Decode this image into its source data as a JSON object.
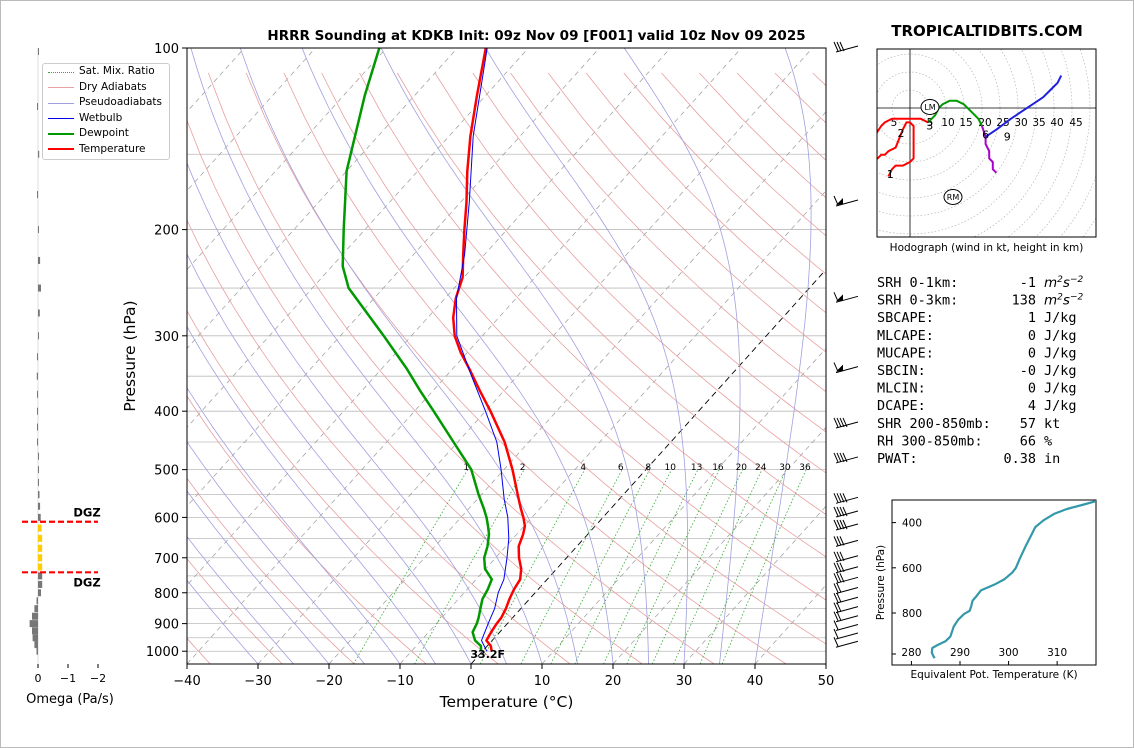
{
  "title": "HRRR Sounding at KDKB Init: 09z Nov 09 [F001] valid 10z Nov 09 2025",
  "watermark": "TROPICALTIDBITS.COM",
  "chart_data": [
    {
      "type": "line",
      "subtype": "skew-t-log-p",
      "xlabel": "Temperature (°C)",
      "ylabel": "Pressure (hPa)",
      "xlim": [
        -40,
        50
      ],
      "ylim": [
        1050,
        100
      ],
      "log_y": true,
      "x_ticks": [
        "−40",
        "−30",
        "−20",
        "−10",
        "0",
        "10",
        "20",
        "30",
        "40",
        "50"
      ],
      "y_ticks": [
        "100",
        "200",
        "300",
        "400",
        "500",
        "600",
        "700",
        "800",
        "900",
        "1000"
      ],
      "legend": {
        "position": "top-left",
        "entries": [
          "Sat. Mix. Ratio",
          "Dry Adiabats",
          "Pseudoadiabats",
          "Wetbulb",
          "Dewpoint",
          "Temperature"
        ]
      },
      "surface_label": "33.2F",
      "mixing_ratio_labels": [
        "1",
        "2",
        "4",
        "6",
        "8",
        "10",
        "13",
        "16",
        "20",
        "24",
        "30",
        "36"
      ],
      "series": [
        {
          "name": "Temperature",
          "color": "#ff0000",
          "points": [
            [
              1000,
              1.3
            ],
            [
              980,
              0.5
            ],
            [
              960,
              -0.8
            ],
            [
              930,
              -1.2
            ],
            [
              900,
              -1.5
            ],
            [
              880,
              -1.6
            ],
            [
              850,
              -2.1
            ],
            [
              820,
              -2.8
            ],
            [
              790,
              -3.4
            ],
            [
              760,
              -3.8
            ],
            [
              730,
              -5.0
            ],
            [
              700,
              -6.7
            ],
            [
              670,
              -8.2
            ],
            [
              640,
              -9.1
            ],
            [
              620,
              -9.9
            ],
            [
              600,
              -11.2
            ],
            [
              580,
              -12.7
            ],
            [
              550,
              -14.9
            ],
            [
              500,
              -18.8
            ],
            [
              450,
              -23.4
            ],
            [
              400,
              -29.3
            ],
            [
              370,
              -33.4
            ],
            [
              340,
              -37.7
            ],
            [
              320,
              -40.9
            ],
            [
              300,
              -43.9
            ],
            [
              280,
              -46.4
            ],
            [
              260,
              -48.5
            ],
            [
              240,
              -50.2
            ],
            [
              220,
              -53.0
            ],
            [
              200,
              -56.0
            ],
            [
              180,
              -59.2
            ],
            [
              160,
              -63.0
            ],
            [
              140,
              -67.0
            ],
            [
              120,
              -71.2
            ],
            [
              100,
              -76.0
            ]
          ]
        },
        {
          "name": "Dewpoint",
          "color": "#009900",
          "points": [
            [
              1000,
              -0.2
            ],
            [
              980,
              -0.9
            ],
            [
              960,
              -2.4
            ],
            [
              930,
              -3.8
            ],
            [
              900,
              -4.3
            ],
            [
              880,
              -4.8
            ],
            [
              850,
              -5.7
            ],
            [
              820,
              -6.6
            ],
            [
              790,
              -7.1
            ],
            [
              760,
              -7.8
            ],
            [
              730,
              -10.1
            ],
            [
              700,
              -11.6
            ],
            [
              670,
              -12.6
            ],
            [
              640,
              -13.9
            ],
            [
              620,
              -15.1
            ],
            [
              600,
              -16.4
            ],
            [
              580,
              -17.9
            ],
            [
              550,
              -20.4
            ],
            [
              500,
              -24.6
            ],
            [
              450,
              -30.6
            ],
            [
              400,
              -37.3
            ],
            [
              370,
              -41.8
            ],
            [
              340,
              -46.5
            ],
            [
              300,
              -53.9
            ],
            [
              250,
              -64.9
            ],
            [
              230,
              -68.5
            ],
            [
              200,
              -73.0
            ],
            [
              160,
              -80.0
            ],
            [
              120,
              -87.0
            ],
            [
              100,
              -91.0
            ]
          ]
        },
        {
          "name": "Wetbulb",
          "color": "#0000ee",
          "points": [
            [
              1000,
              0.6
            ],
            [
              960,
              -1.5
            ],
            [
              900,
              -2.7
            ],
            [
              850,
              -3.7
            ],
            [
              800,
              -5.2
            ],
            [
              760,
              -6.1
            ],
            [
              700,
              -8.4
            ],
            [
              650,
              -10.6
            ],
            [
              600,
              -13.4
            ],
            [
              560,
              -16.2
            ],
            [
              500,
              -20.4
            ],
            [
              450,
              -24.5
            ],
            [
              400,
              -30.0
            ],
            [
              350,
              -36.4
            ],
            [
              300,
              -43.6
            ],
            [
              260,
              -48.4
            ],
            [
              220,
              -52.8
            ],
            [
              180,
              -58.8
            ],
            [
              140,
              -66.6
            ],
            [
              100,
              -75.8
            ]
          ]
        }
      ]
    },
    {
      "type": "bar",
      "subtype": "horizontal-omega-profile",
      "xlabel": "Omega (Pa/s)",
      "x_ticks": [
        "0",
        "−1",
        "−2"
      ],
      "levels_hPa": [
        100,
        125,
        150,
        175,
        200,
        225,
        250,
        275,
        300,
        325,
        350,
        375,
        400,
        425,
        450,
        475,
        500,
        525,
        550,
        575,
        600,
        625,
        650,
        675,
        700,
        725,
        750,
        775,
        800,
        825,
        850,
        875,
        900,
        925,
        950,
        975,
        1000
      ],
      "values": [
        -0.02,
        0.03,
        -0.04,
        0.02,
        -0.03,
        -0.07,
        -0.1,
        -0.06,
        -0.03,
        0.02,
        0.04,
        0.03,
        0.02,
        0.01,
        0.0,
        -0.01,
        -0.02,
        -0.03,
        -0.05,
        -0.07,
        -0.09,
        -0.12,
        -0.14,
        -0.14,
        -0.14,
        -0.14,
        -0.14,
        -0.14,
        -0.1,
        0.05,
        0.12,
        0.2,
        0.28,
        0.2,
        0.18,
        0.12,
        0.05
      ],
      "colors": {
        "dgz": "#ffcc00",
        "other": "#777777"
      },
      "dgz": {
        "label": "DGZ",
        "top_hPa": 610,
        "bottom_hPa": 740
      }
    },
    {
      "type": "line",
      "subtype": "hodograph",
      "caption": "Hodograph (wind in kt, height in km)",
      "ring_labels": [
        "5",
        "5",
        "10",
        "15",
        "20",
        "25",
        "30",
        "35",
        "40",
        "45"
      ],
      "storm_motion_markers": [
        "LM",
        "RM"
      ],
      "height_labels": [
        "1",
        "2",
        "3",
        "6",
        "9"
      ],
      "segments": [
        {
          "range": "0-3 km",
          "color": "#ff0000",
          "points": [
            [
              -6,
              -19
            ],
            [
              -5,
              -17
            ],
            [
              -4,
              -16
            ],
            [
              -2,
              -16
            ],
            [
              0,
              -15
            ],
            [
              1,
              -14
            ],
            [
              1,
              -13
            ],
            [
              1,
              -10
            ],
            [
              1,
              -8
            ],
            [
              1,
              -5
            ],
            [
              0,
              -4
            ],
            [
              -1,
              -4
            ],
            [
              -2,
              -6
            ],
            [
              -4,
              -11
            ],
            [
              -6,
              -12
            ],
            [
              -7,
              -13
            ],
            [
              -8,
              -13
            ],
            [
              -9,
              -14
            ],
            [
              -10,
              -13
            ],
            [
              -10,
              -11
            ],
            [
              -10,
              -8
            ],
            [
              -8,
              -5
            ],
            [
              -7,
              -4
            ],
            [
              -5,
              -3
            ],
            [
              -4,
              -3
            ],
            [
              -3,
              -3
            ],
            [
              -2,
              -3
            ],
            [
              0,
              -3
            ],
            [
              3,
              -3
            ],
            [
              5,
              -4
            ]
          ]
        },
        {
          "range": "3-6 km",
          "color": "#009900",
          "points": [
            [
              5,
              -4
            ],
            [
              7,
              -2
            ],
            [
              8,
              0
            ],
            [
              9,
              1
            ],
            [
              11,
              2
            ],
            [
              13,
              2
            ],
            [
              15,
              1
            ],
            [
              17,
              -1
            ],
            [
              19,
              -3
            ],
            [
              20,
              -5
            ]
          ]
        },
        {
          "range": "6-9 km",
          "color": "#aa00cc",
          "points": [
            [
              20,
              -5
            ],
            [
              21,
              -8
            ],
            [
              21,
              -10
            ],
            [
              22,
              -12
            ],
            [
              22,
              -14
            ],
            [
              23,
              -15
            ],
            [
              23,
              -17
            ],
            [
              24,
              -18
            ]
          ]
        },
        {
          "range": "9-12 km",
          "color": "#2020dd",
          "points": [
            [
              21,
              -8
            ],
            [
              24,
              -6
            ],
            [
              28,
              -3
            ],
            [
              31,
              -1
            ],
            [
              34,
              1
            ],
            [
              37,
              3
            ],
            [
              39,
              5
            ],
            [
              41,
              7
            ],
            [
              42,
              9
            ]
          ]
        }
      ]
    },
    {
      "type": "line",
      "subtype": "theta-e-profile",
      "xlabel": "Equivalent Pot. Temperature (K)",
      "ylabel": "Pressure (hPa)",
      "x_ticks": [
        "280",
        "290",
        "300",
        "310"
      ],
      "y_ticks": [
        "400",
        "600",
        "800"
      ],
      "xlim": [
        276,
        318
      ],
      "ylim": [
        1030,
        300
      ],
      "color": "#3399aa",
      "points": [
        [
          1000,
          284.8
        ],
        [
          990,
          284.5
        ],
        [
          975,
          284.2
        ],
        [
          955,
          284.3
        ],
        [
          940,
          285.5
        ],
        [
          925,
          287.0
        ],
        [
          905,
          288.0
        ],
        [
          880,
          288.4
        ],
        [
          860,
          288.7
        ],
        [
          830,
          289.6
        ],
        [
          805,
          290.8
        ],
        [
          790,
          292.0
        ],
        [
          770,
          292.3
        ],
        [
          745,
          292.6
        ],
        [
          725,
          293.4
        ],
        [
          700,
          294.3
        ],
        [
          675,
          297.0
        ],
        [
          650,
          299.2
        ],
        [
          620,
          300.8
        ],
        [
          600,
          301.5
        ],
        [
          560,
          302.3
        ],
        [
          500,
          303.6
        ],
        [
          450,
          304.8
        ],
        [
          420,
          305.5
        ],
        [
          390,
          307.2
        ],
        [
          360,
          309.5
        ],
        [
          340,
          312.0
        ],
        [
          320,
          315.5
        ],
        [
          305,
          318.0
        ]
      ]
    },
    {
      "type": "table",
      "subtype": "sounding-parameters",
      "rows": [
        {
          "label": "SRH 0-1km:",
          "value": "-1",
          "unit": "m2s-2",
          "color": "#000000"
        },
        {
          "label": "SRH 0-3km:",
          "value": "138",
          "unit": "m2s-2",
          "color": "#000000"
        },
        {
          "label": "SBCAPE:",
          "value": "1",
          "unit": "J/kg",
          "color": "#dd0000"
        },
        {
          "label": "MLCAPE:",
          "value": "0",
          "unit": "J/kg",
          "color": "#000000"
        },
        {
          "label": "MUCAPE:",
          "value": "0",
          "unit": "J/kg",
          "color": "#000000"
        },
        {
          "label": "SBCIN:",
          "value": "-0",
          "unit": "J/kg",
          "color": "#000000"
        },
        {
          "label": "MLCIN:",
          "value": "0",
          "unit": "J/kg",
          "color": "#000000"
        },
        {
          "label": "DCAPE:",
          "value": "4",
          "unit": "J/kg",
          "color": "#2222cc"
        },
        {
          "label": "SHR 200-850mb:",
          "value": "57",
          "unit": "kt",
          "color": "#aa1111"
        },
        {
          "label": "RH 300-850mb:",
          "value": "66",
          "unit": "%",
          "color": "#000000"
        },
        {
          "label": "PWAT:",
          "value": "0.38",
          "unit": "in",
          "color": "#000000"
        }
      ]
    }
  ]
}
